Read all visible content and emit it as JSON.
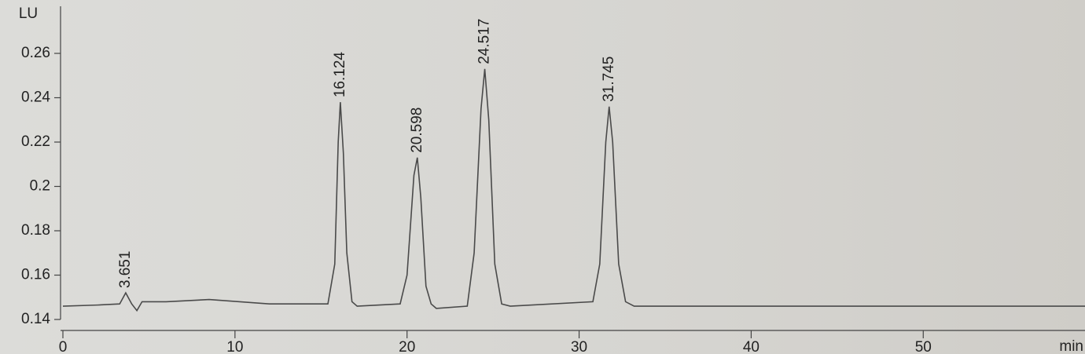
{
  "chart_data": {
    "type": "line",
    "y_label": "LU",
    "x_label": "min",
    "x": [
      0,
      2,
      3.3,
      3.651,
      4.0,
      4.3,
      4.6,
      6,
      8.5,
      12,
      15.4,
      15.8,
      16.0,
      16.124,
      16.3,
      16.5,
      16.8,
      17.1,
      19.6,
      20.0,
      20.4,
      20.598,
      20.8,
      21.1,
      21.4,
      21.7,
      23.5,
      23.9,
      24.3,
      24.517,
      24.75,
      25.1,
      25.5,
      26,
      30.8,
      31.2,
      31.55,
      31.745,
      31.95,
      32.3,
      32.7,
      33.2,
      45,
      59.4
    ],
    "series": [
      {
        "color": "#4a4a4a",
        "values": [
          0.146,
          0.1465,
          0.147,
          0.152,
          0.147,
          0.144,
          0.148,
          0.148,
          0.149,
          0.147,
          0.147,
          0.165,
          0.22,
          0.238,
          0.215,
          0.17,
          0.148,
          0.146,
          0.147,
          0.16,
          0.205,
          0.213,
          0.195,
          0.155,
          0.147,
          0.145,
          0.146,
          0.17,
          0.235,
          0.253,
          0.23,
          0.165,
          0.147,
          0.146,
          0.148,
          0.165,
          0.22,
          0.236,
          0.22,
          0.165,
          0.148,
          0.146,
          0.146,
          0.146
        ]
      }
    ],
    "peak_labels": [
      3.651,
      16.124,
      20.598,
      24.517,
      31.745
    ],
    "xlim": [
      0,
      59.4
    ],
    "xticks": [
      0,
      10,
      20,
      30,
      40,
      50
    ],
    "ylim": [
      0.14,
      0.28
    ],
    "yticks": [
      0.14,
      0.16,
      0.18,
      0.2,
      0.22,
      0.24,
      0.26
    ]
  }
}
